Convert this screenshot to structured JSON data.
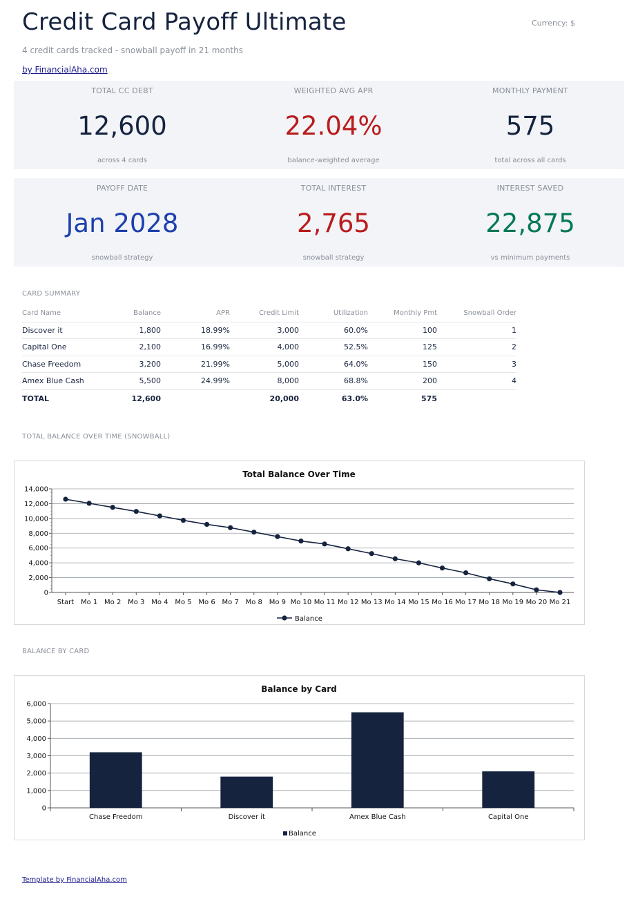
{
  "header": {
    "title": "Credit Card Payoff Ultimate",
    "currency": "Currency: $",
    "subtitle": "4 credit cards tracked - snowball payoff in 21 months",
    "byline": "by FinancialAha.com"
  },
  "kpis_top": [
    {
      "label": "TOTAL CC DEBT",
      "value": "12,600",
      "sub": "across 4 cards",
      "color": "#15233f"
    },
    {
      "label": "WEIGHTED AVG APR",
      "value": "22.04%",
      "sub": "balance-weighted average",
      "color": "#b91c1c"
    },
    {
      "label": "MONTHLY PAYMENT",
      "value": "575",
      "sub": "total across all cards",
      "color": "#15233f"
    }
  ],
  "kpis_bottom": [
    {
      "label": "PAYOFF DATE",
      "value": "Jan 2028",
      "sub": "snowball strategy",
      "color": "#1e40af"
    },
    {
      "label": "TOTAL INTEREST",
      "value": "2,765",
      "sub": "snowball strategy",
      "color": "#b91c1c"
    },
    {
      "label": "INTEREST SAVED",
      "value": "22,875",
      "sub": "vs minimum payments",
      "color": "#047857"
    }
  ],
  "card_summary": {
    "section_label": "CARD SUMMARY",
    "columns": [
      "Card Name",
      "Balance",
      "APR",
      "Credit Limit",
      "Utilization",
      "Monthly Pmt",
      "Snowball Order"
    ],
    "rows": [
      [
        "Discover it",
        "1,800",
        "18.99%",
        "3,000",
        "60.0%",
        "100",
        "1"
      ],
      [
        "Capital One",
        "2,100",
        "16.99%",
        "4,000",
        "52.5%",
        "125",
        "2"
      ],
      [
        "Chase Freedom",
        "3,200",
        "21.99%",
        "5,000",
        "64.0%",
        "150",
        "3"
      ],
      [
        "Amex Blue Cash",
        "5,500",
        "24.99%",
        "8,000",
        "68.8%",
        "200",
        "4"
      ]
    ],
    "total": [
      "TOTAL",
      "12,600",
      "",
      "20,000",
      "63.0%",
      "575",
      ""
    ]
  },
  "line_section_label": "TOTAL BALANCE OVER TIME (SNOWBALL)",
  "bar_section_label": "BALANCE BY CARD",
  "footer": "Template by FinancialAha.com",
  "chart_data": [
    {
      "type": "line",
      "title": "Total Balance Over Time",
      "categories": [
        "Start",
        "Mo 1",
        "Mo 2",
        "Mo 3",
        "Mo 4",
        "Mo 5",
        "Mo 6",
        "Mo 7",
        "Mo 8",
        "Mo 9",
        "Mo 10",
        "Mo 11",
        "Mo 12",
        "Mo 13",
        "Mo 14",
        "Mo 15",
        "Mo 16",
        "Mo 17",
        "Mo 18",
        "Mo 19",
        "Mo 20",
        "Mo 21"
      ],
      "series": [
        {
          "name": "Balance",
          "values": [
            12600,
            12050,
            11500,
            10950,
            10350,
            9750,
            9200,
            8750,
            8150,
            7550,
            6950,
            6550,
            5900,
            5250,
            4550,
            4000,
            3300,
            2650,
            1850,
            1150,
            350,
            0
          ],
          "color": "#15233f"
        }
      ],
      "ylim": [
        0,
        14000
      ],
      "yticks": [
        0,
        2000,
        4000,
        6000,
        8000,
        10000,
        12000,
        14000
      ],
      "ytick_labels": [
        "0",
        "2,000",
        "4,000",
        "6,000",
        "8,000",
        "10,000",
        "12,000",
        "14,000"
      ],
      "grid": true,
      "legend": "bottom"
    },
    {
      "type": "bar",
      "title": "Balance by Card",
      "categories": [
        "Chase Freedom",
        "Discover it",
        "Amex Blue Cash",
        "Capital One"
      ],
      "series": [
        {
          "name": "Balance",
          "values": [
            3200,
            1800,
            5500,
            2100
          ],
          "color": "#15233f"
        }
      ],
      "ylim": [
        0,
        6000
      ],
      "yticks": [
        0,
        1000,
        2000,
        3000,
        4000,
        5000,
        6000
      ],
      "ytick_labels": [
        "0",
        "1,000",
        "2,000",
        "3,000",
        "4,000",
        "5,000",
        "6,000"
      ],
      "grid": true,
      "legend": "bottom"
    }
  ]
}
